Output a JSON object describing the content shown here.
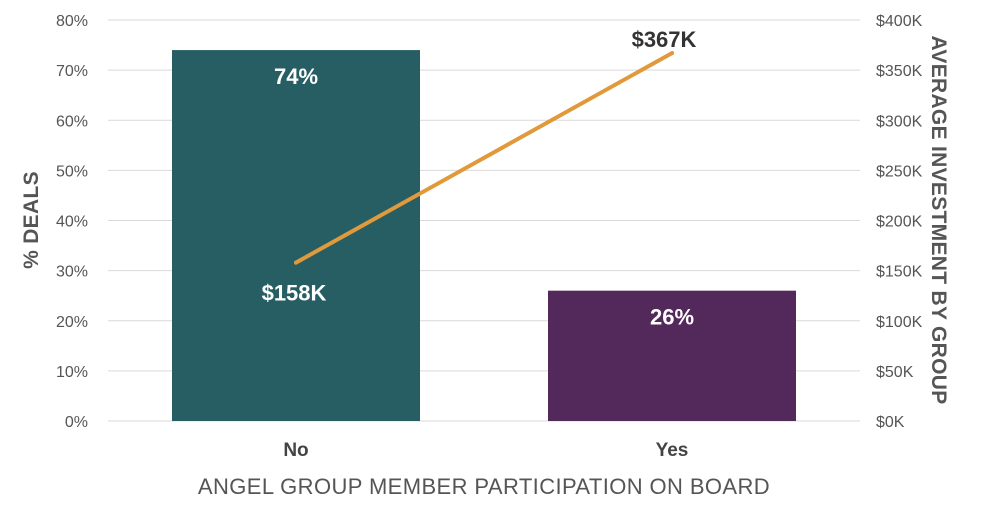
{
  "chart_data": {
    "type": "bar+line",
    "xlabel": "ANGEL GROUP MEMBER PARTICIPATION ON BOARD",
    "categories": [
      "No",
      "Yes"
    ],
    "bars": {
      "axis": "left",
      "ylabel": "% DEALS",
      "ylim": [
        0,
        80
      ],
      "values": [
        74,
        26
      ],
      "value_labels": [
        "74%",
        "26%"
      ],
      "colors": [
        "#275e64",
        "#53285a"
      ],
      "ticks": [
        "0%",
        "10%",
        "20%",
        "30%",
        "40%",
        "50%",
        "60%",
        "70%",
        "80%"
      ]
    },
    "line": {
      "axis": "right",
      "ylabel": "AVERAGE INVESTMENT BY GROUP",
      "ylim": [
        0,
        400
      ],
      "unit": "$K",
      "values": [
        158,
        367
      ],
      "value_labels": [
        "$158K",
        "$367K"
      ],
      "color": "#e09a3c",
      "ticks": [
        "$0K",
        "$50K",
        "$100K",
        "$150K",
        "$200K",
        "$250K",
        "$300K",
        "$350K",
        "$400K"
      ]
    },
    "grid": true,
    "legend": "none"
  }
}
